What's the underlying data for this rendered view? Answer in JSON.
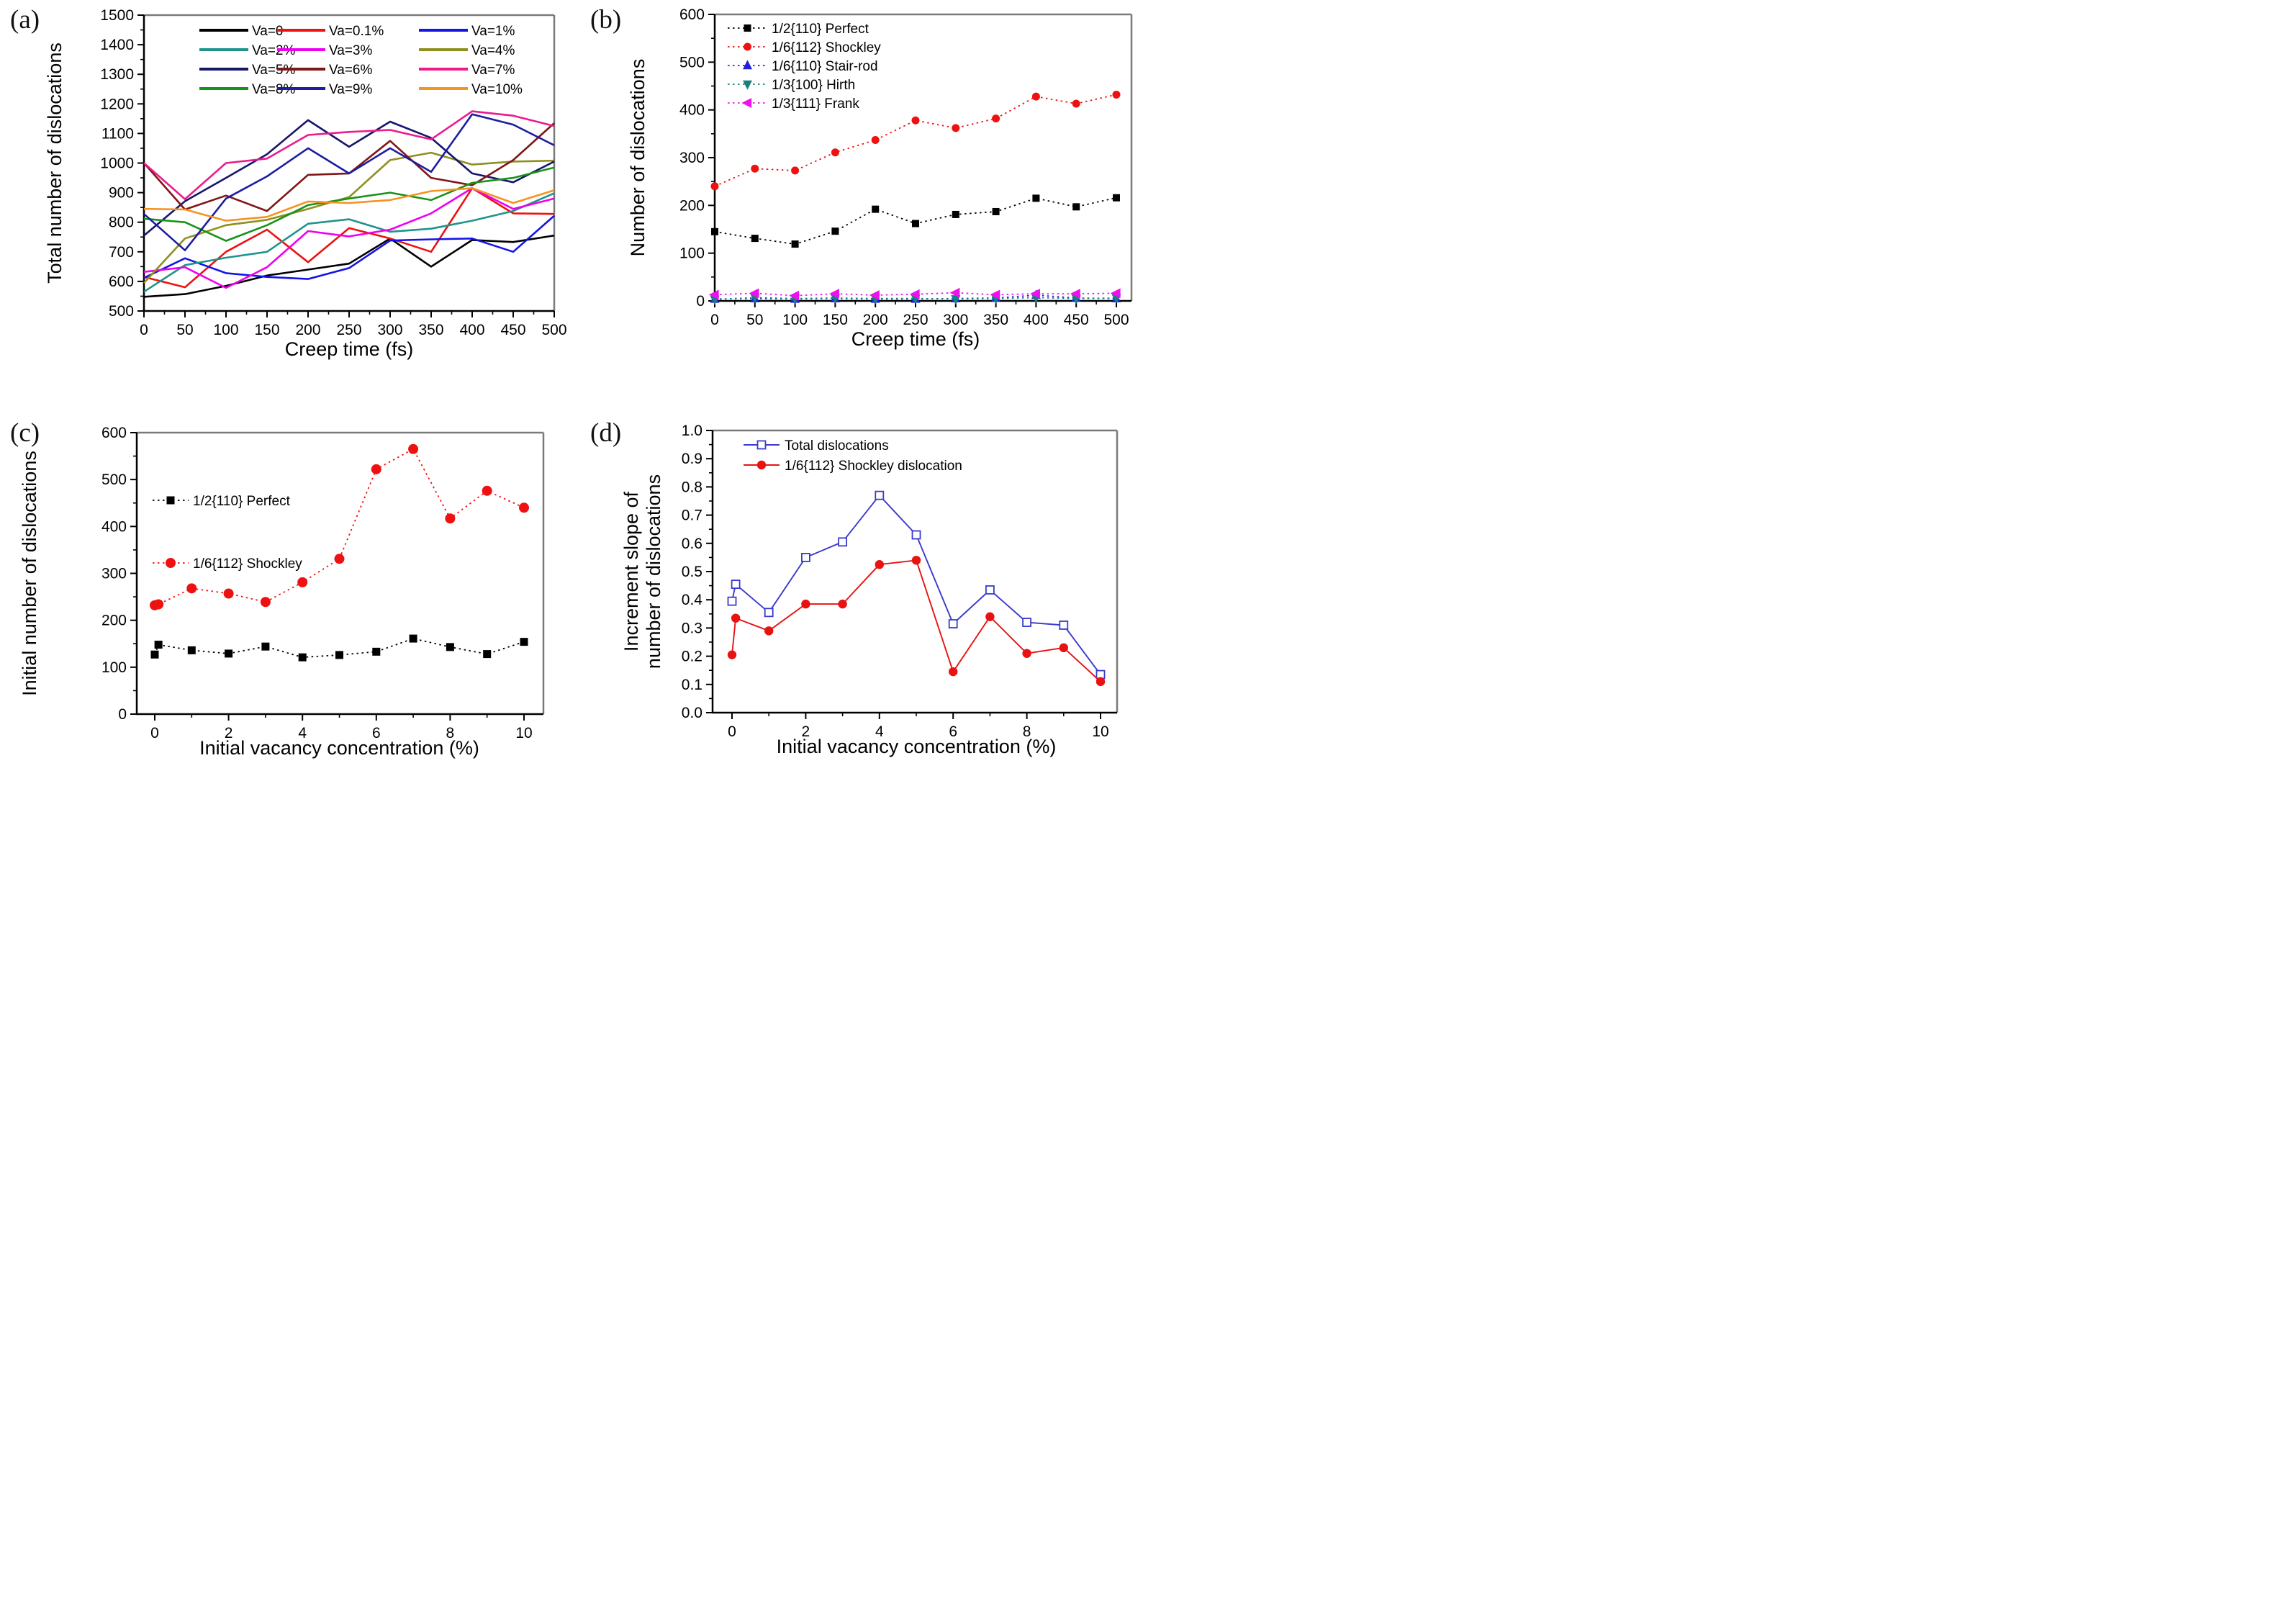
{
  "figure": {
    "background": "#ffffff",
    "description": "Four-panel scientific figure of dislocation statistics versus creep time and vacancy concentration"
  },
  "chart_data": [
    {
      "panel_label": "(a)",
      "type": "line",
      "title": "",
      "xlabel": "Creep time (fs)",
      "ylabel_lines": [
        "Total number of dislocations"
      ],
      "xlim": [
        0,
        500
      ],
      "ylim": [
        500,
        1500
      ],
      "grid": "off",
      "legend_position": "top-left-3-columns",
      "xtick_values": [
        0,
        50,
        100,
        150,
        200,
        250,
        300,
        350,
        400,
        450,
        500
      ],
      "xtick_labels": [
        "0",
        "50",
        "100",
        "150",
        "200",
        "250",
        "300",
        "350",
        "400",
        "450",
        "500"
      ],
      "ytick_values": [
        500,
        600,
        700,
        800,
        900,
        1000,
        1100,
        1200,
        1300,
        1400,
        1500
      ],
      "ytick_labels": [
        "500",
        "600",
        "700",
        "800",
        "900",
        "1000",
        "1100",
        "1200",
        "1300",
        "1400",
        "1500"
      ],
      "x": [
        0,
        50,
        100,
        150,
        200,
        250,
        300,
        350,
        400,
        450,
        500
      ],
      "series": [
        {
          "name": "Va=0",
          "color": "#000000",
          "marker": "none",
          "line": "solid",
          "values": [
            548,
            557,
            585,
            620,
            640,
            660,
            745,
            650,
            740,
            733,
            755
          ]
        },
        {
          "name": "Va=0.1%",
          "color": "#ee1111",
          "marker": "none",
          "line": "solid",
          "values": [
            615,
            580,
            700,
            775,
            665,
            780,
            745,
            700,
            915,
            830,
            828
          ]
        },
        {
          "name": "Va=1%",
          "color": "#1414e6",
          "marker": "none",
          "line": "solid",
          "values": [
            612,
            678,
            628,
            615,
            608,
            645,
            738,
            742,
            745,
            700,
            822
          ]
        },
        {
          "name": "Va=2%",
          "color": "#20948b",
          "marker": "none",
          "line": "solid",
          "values": [
            565,
            655,
            680,
            700,
            795,
            810,
            768,
            778,
            805,
            838,
            898
          ]
        },
        {
          "name": "Va=3%",
          "color": "#ee00ee",
          "marker": "none",
          "line": "solid",
          "values": [
            632,
            648,
            578,
            648,
            770,
            752,
            775,
            830,
            915,
            845,
            880
          ]
        },
        {
          "name": "Va=4%",
          "color": "#8f8f20",
          "marker": "none",
          "line": "solid",
          "values": [
            595,
            745,
            790,
            808,
            845,
            885,
            1010,
            1035,
            995,
            1005,
            1008
          ]
        },
        {
          "name": "Va=5%",
          "color": "#16166b",
          "marker": "none",
          "line": "solid",
          "values": [
            755,
            871,
            950,
            1030,
            1145,
            1055,
            1140,
            1085,
            965,
            935,
            1005
          ]
        },
        {
          "name": "Va=6%",
          "color": "#801717",
          "marker": "none",
          "line": "solid",
          "values": [
            1000,
            843,
            890,
            838,
            960,
            965,
            1075,
            950,
            925,
            1010,
            1135
          ]
        },
        {
          "name": "Va=7%",
          "color": "#ec1a8c",
          "marker": "none",
          "line": "solid",
          "values": [
            1000,
            878,
            1000,
            1015,
            1095,
            1105,
            1112,
            1080,
            1175,
            1160,
            1125
          ]
        },
        {
          "name": "Va=8%",
          "color": "#189318",
          "marker": "none",
          "line": "solid",
          "values": [
            812,
            800,
            737,
            790,
            858,
            880,
            900,
            875,
            933,
            950,
            985
          ]
        },
        {
          "name": "Va=9%",
          "color": "#1d1da0",
          "marker": "none",
          "line": "solid",
          "values": [
            828,
            705,
            880,
            955,
            1050,
            965,
            1050,
            970,
            1165,
            1130,
            1060
          ]
        },
        {
          "name": "Va=10%",
          "color": "#f59322",
          "marker": "none",
          "line": "solid",
          "values": [
            845,
            843,
            805,
            818,
            870,
            865,
            875,
            905,
            915,
            865,
            908
          ]
        }
      ]
    },
    {
      "panel_label": "(b)",
      "type": "line",
      "title": "",
      "xlabel": "Creep time (fs)",
      "ylabel_lines": [
        "Number of dislocations"
      ],
      "xlim": [
        0,
        500
      ],
      "ylim": [
        0,
        600
      ],
      "grid": "off",
      "legend_position": "top-left",
      "xtick_values": [
        0,
        50,
        100,
        150,
        200,
        250,
        300,
        350,
        400,
        450,
        500
      ],
      "xtick_labels": [
        "0",
        "50",
        "100",
        "150",
        "200",
        "250",
        "300",
        "350",
        "400",
        "450",
        "500"
      ],
      "ytick_values": [
        0,
        100,
        200,
        300,
        400,
        500,
        600
      ],
      "ytick_labels": [
        "0",
        "100",
        "200",
        "300",
        "400",
        "500",
        "600"
      ],
      "x": [
        0,
        50,
        100,
        150,
        200,
        250,
        300,
        350,
        400,
        450,
        500
      ],
      "series": [
        {
          "name": "1/2{110} Perfect",
          "color": "#000000",
          "marker": "square",
          "line": "dotted",
          "values": [
            145,
            131,
            119,
            146,
            192,
            162,
            181,
            187,
            215,
            197,
            216
          ]
        },
        {
          "name": "1/6{112} Shockley",
          "color": "#ee1111",
          "marker": "circle",
          "line": "dotted",
          "values": [
            240,
            277,
            273,
            311,
            337,
            378,
            362,
            382,
            428,
            413,
            432
          ]
        },
        {
          "name": "1/6{110} Stair-rod",
          "color": "#2020dc",
          "marker": "tri-up",
          "line": "dotted",
          "values": [
            4,
            5,
            4,
            5,
            4,
            4,
            5,
            6,
            12,
            6,
            5
          ]
        },
        {
          "name": "1/3{100} Hirth",
          "color": "#17807e",
          "marker": "tri-down",
          "line": "dotted",
          "values": [
            3,
            7,
            5,
            6,
            5,
            5,
            4,
            5,
            7,
            5,
            6
          ]
        },
        {
          "name": "1/3{111} Frank",
          "color": "#ee10ee",
          "marker": "tri-left",
          "line": "dotted",
          "values": [
            13,
            16,
            11,
            15,
            12,
            14,
            17,
            13,
            15,
            15,
            16
          ]
        }
      ]
    },
    {
      "panel_label": "(c)",
      "type": "line",
      "title": "",
      "xlabel": "Initial vacancy concentration (%)",
      "ylabel_lines": [
        "Initial number of dislocations"
      ],
      "xlim": [
        0,
        10
      ],
      "ylim": [
        0,
        600
      ],
      "grid": "off",
      "legend_position": "top-left",
      "xtick_values": [
        0,
        2,
        4,
        6,
        8,
        10
      ],
      "xtick_labels": [
        "0",
        "2",
        "4",
        "6",
        "8",
        "10"
      ],
      "ytick_values": [
        0,
        100,
        200,
        300,
        400,
        500,
        600
      ],
      "ytick_labels": [
        "0",
        "100",
        "200",
        "300",
        "400",
        "500",
        "600"
      ],
      "x": [
        0,
        0.1,
        1,
        2,
        3,
        4,
        5,
        6,
        7,
        8,
        9,
        10
      ],
      "series": [
        {
          "name": "1/2{110} Perfect",
          "color": "#000000",
          "marker": "square",
          "line": "dotted",
          "values": [
            127,
            148,
            136,
            129,
            144,
            121,
            126,
            133,
            161,
            143,
            128,
            154
          ]
        },
        {
          "name": "1/6{112} Shockley",
          "color": "#ee1111",
          "marker": "circle",
          "line": "dotted",
          "values": [
            232,
            234,
            268,
            257,
            239,
            281,
            331,
            522,
            565,
            417,
            476,
            440
          ]
        }
      ]
    },
    {
      "panel_label": "(d)",
      "type": "line",
      "title": "",
      "xlabel": "Initial vacancy concentration (%)",
      "ylabel_lines": [
        "Increment slope of",
        "number of dislocations"
      ],
      "xlim": [
        0,
        10
      ],
      "ylim": [
        0,
        1.0
      ],
      "grid": "off",
      "legend_position": "top-left",
      "xtick_values": [
        0,
        2,
        4,
        6,
        8,
        10
      ],
      "xtick_labels": [
        "0",
        "2",
        "4",
        "6",
        "8",
        "10"
      ],
      "ytick_values": [
        0,
        0.1,
        0.2,
        0.3,
        0.4,
        0.5,
        0.6,
        0.7,
        0.8,
        0.9,
        1.0
      ],
      "ytick_labels": [
        "0.0",
        "0.1",
        "0.2",
        "0.3",
        "0.4",
        "0.5",
        "0.6",
        "0.7",
        "0.8",
        "0.9",
        "1.0"
      ],
      "x": [
        0,
        0.1,
        1,
        2,
        3,
        4,
        5,
        6,
        7,
        8,
        9,
        10
      ],
      "series": [
        {
          "name": "Total dislocations",
          "color": "#3a3acd",
          "marker": "square-open",
          "line": "solid",
          "values": [
            0.395,
            0.455,
            0.355,
            0.55,
            0.605,
            0.77,
            0.63,
            0.315,
            0.435,
            0.32,
            0.31,
            0.135
          ]
        },
        {
          "name": "1/6{112} Shockley dislocation",
          "color": "#e81212",
          "marker": "circle",
          "line": "solid",
          "values": [
            0.205,
            0.335,
            0.29,
            0.385,
            0.385,
            0.525,
            0.54,
            0.145,
            0.34,
            0.21,
            0.23,
            0.11
          ]
        }
      ]
    }
  ]
}
